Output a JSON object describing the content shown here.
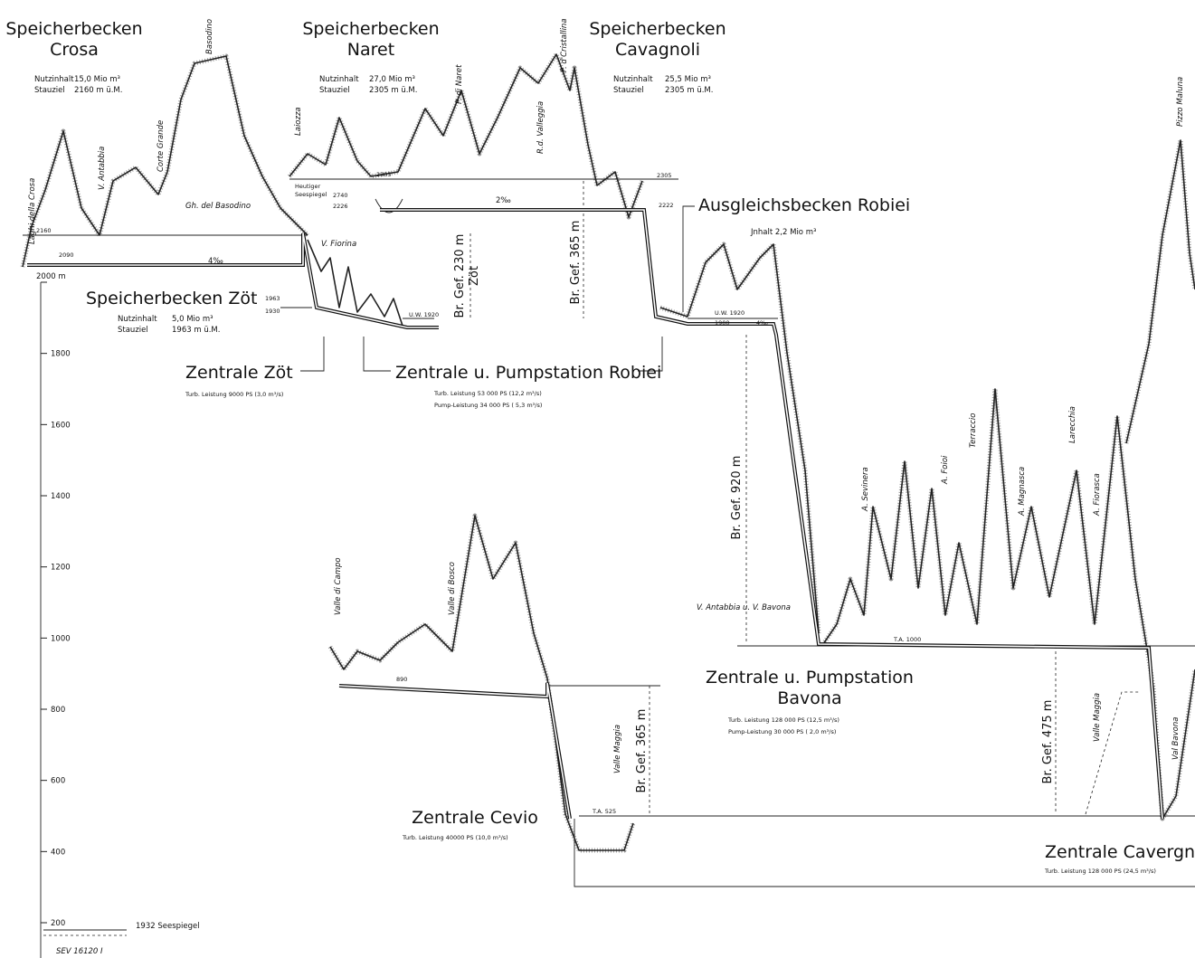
{
  "reservoirs": [
    {
      "title": [
        "Speicherbecken",
        "Crosa"
      ],
      "details": [
        [
          "Nutzinhalt",
          "15,0 Mio m³"
        ],
        [
          "Stauziel",
          "2160 m ü.M."
        ]
      ]
    },
    {
      "title": [
        "Speicherbecken",
        "Naret"
      ],
      "details": [
        [
          "Nutzinhalt",
          "27,0 Mio m³"
        ],
        [
          "Stauziel",
          "2305 m ü.M."
        ]
      ]
    },
    {
      "title": [
        "Speicherbecken",
        "Cavagnoli"
      ],
      "details": [
        [
          "Nutzinhalt",
          "25,5 Mio m³"
        ],
        [
          "Stauziel",
          "2305 m ü.M."
        ]
      ]
    },
    {
      "title": [
        "Speicherbecken Zöt"
      ],
      "details": [
        [
          "Nutzinhalt",
          "5,0 Mio m³"
        ],
        [
          "Stauziel",
          "1963 m ü.M."
        ]
      ]
    }
  ],
  "compensation_basin": {
    "title": "Ausgleichsbecken Robiei",
    "content": "Jnhalt 2,2 Mio m³"
  },
  "stations": [
    {
      "name": [
        "Zentrale Zöt"
      ],
      "specs": [
        "Turb. Leistung 9000 PS (3,0 m³/s)"
      ]
    },
    {
      "name": [
        "Zentrale u. Pumpstation Robiei"
      ],
      "specs": [
        "Turb. Leistung  53 000 PS  (12,2 m³/s)",
        "Pump-Leistung  34 000 PS  ( 5,3 m³/s)"
      ]
    },
    {
      "name": [
        "Zentrale u. Pumpstation",
        "Bavona"
      ],
      "specs": [
        "Turb. Leistung    128 000 PS  (12,5 m³/s)",
        "Pump-Leistung     30 000 PS  ( 2,0 m³/s)"
      ]
    },
    {
      "name": [
        "Zentrale Cevio"
      ],
      "specs": [
        "Turb. Leistung 40000 PS (10,0 m³/s)"
      ]
    },
    {
      "name": [
        "Zentrale Cavergno"
      ],
      "specs": [
        "Turb. Leistung 128 000 PS (24,5 m³/s)"
      ]
    }
  ],
  "heads": [
    "Br. Gef. 230 m",
    "Zöt",
    "Br. Gef. 365 m",
    "Br. Gef. 920 m",
    "Br. Gef. 365 m",
    "Br. Gef. 475 m"
  ],
  "place_names": [
    "Laghi della Crosa",
    "V. Antabbia",
    "Corte Grande",
    "Basodino",
    "Gh. del Basodino",
    "Laiozza",
    "P. di Naret",
    "R.d. Valleggia",
    "P. d'Cristallina",
    "V. Fiorina",
    "Pizzo Maluna",
    "A. Sevinera",
    "A. Foioi",
    "Terraccio",
    "A. Magnasca",
    "Larecchia",
    "A. Fiorasca",
    "V. Antabbia u. V. Bavona",
    "Valle di Campo",
    "Valle di Bosco",
    "Valle Maggia",
    "Valle Maggia",
    "Val Bavona"
  ],
  "levels": [
    "2160",
    "2090",
    "4‰",
    "2305",
    "2305",
    "Heutiger",
    "Seespiegel",
    "2740",
    "2226",
    "2222",
    "2‰",
    "1963",
    "1930",
    "U.W. 1920",
    "U.W. 1920",
    "1900",
    "4‰",
    "T.A. 1000",
    "890",
    "T.A. 525"
  ],
  "scale": {
    "ticks": [
      200,
      400,
      600,
      800,
      1000,
      1200,
      1400,
      1600,
      1800,
      {
        "value": 2000,
        "label": "2000 m"
      }
    ],
    "lake_level": "1932 Seespiegel",
    "reference": "SEV 16120 I"
  }
}
